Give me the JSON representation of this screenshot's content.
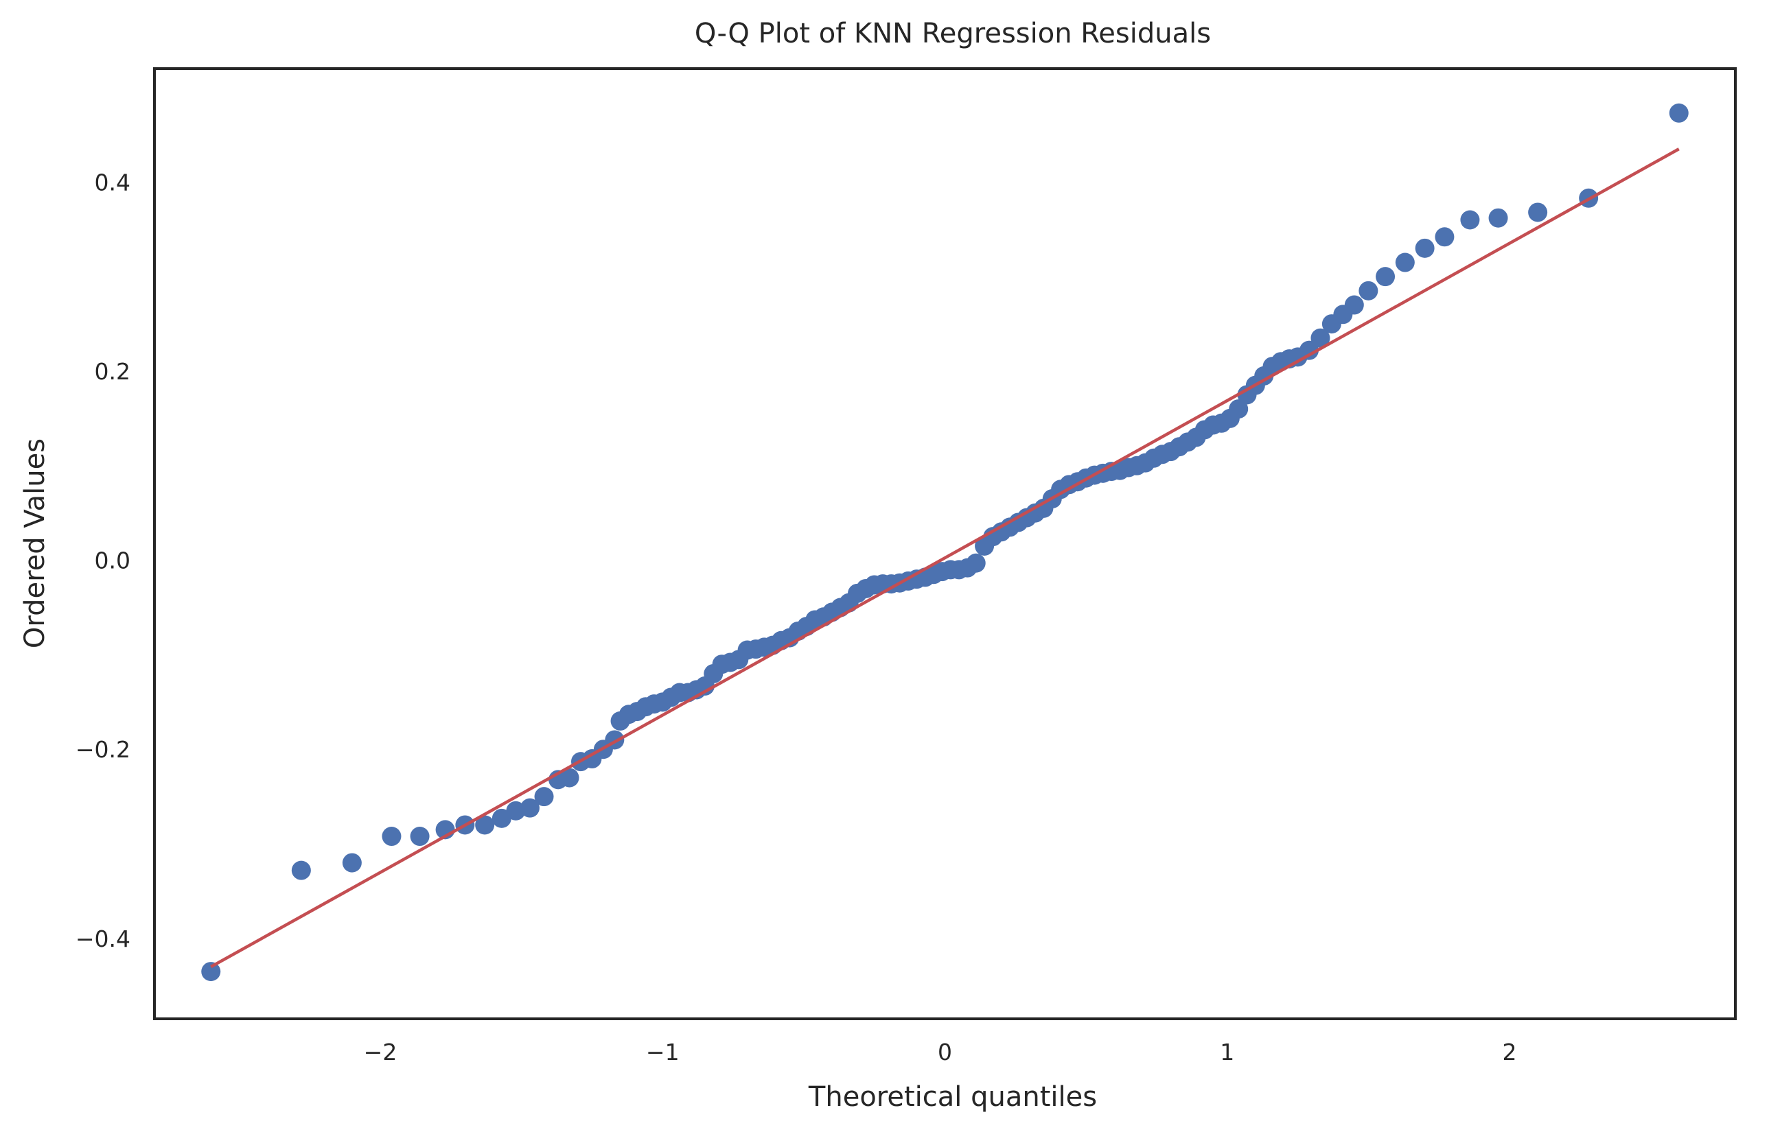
{
  "chart_data": {
    "type": "scatter",
    "title": "Q-Q Plot of KNN Regression Residuals",
    "xlabel": "Theoretical quantiles",
    "ylabel": "Ordered Values",
    "xlim": [
      -2.8,
      2.8
    ],
    "ylim": [
      -0.485,
      0.52
    ],
    "x_ticks": [
      {
        "value": -2,
        "label": "−2"
      },
      {
        "value": -1,
        "label": "−1"
      },
      {
        "value": 0,
        "label": "0"
      },
      {
        "value": 1,
        "label": "1"
      },
      {
        "value": 2,
        "label": "2"
      }
    ],
    "y_ticks": [
      {
        "value": -0.4,
        "label": "−0.4"
      },
      {
        "value": -0.2,
        "label": "−0.2"
      },
      {
        "value": 0,
        "label": "0.0"
      },
      {
        "value": 0.2,
        "label": "0.2"
      },
      {
        "value": 0.4,
        "label": "0.4"
      }
    ],
    "grid": false,
    "points_color": "#4c72b0",
    "fit_line": {
      "color": "#c44e52",
      "x": [
        -2.6,
        2.6
      ],
      "y": [
        -0.43,
        0.435
      ]
    },
    "points": {
      "x": [
        -2.6,
        -2.28,
        -2.1,
        -1.96,
        -1.86,
        -1.77,
        -1.7,
        -1.63,
        -1.57,
        -1.52,
        -1.47,
        -1.42,
        -1.37,
        -1.33,
        -1.29,
        -1.25,
        -1.21,
        -1.17,
        -1.15,
        -1.12,
        -1.09,
        -1.06,
        -1.03,
        -1.0,
        -0.97,
        -0.94,
        -0.91,
        -0.88,
        -0.85,
        -0.82,
        -0.79,
        -0.76,
        -0.73,
        -0.7,
        -0.67,
        -0.64,
        -0.61,
        -0.58,
        -0.55,
        -0.52,
        -0.49,
        -0.46,
        -0.43,
        -0.4,
        -0.37,
        -0.34,
        -0.31,
        -0.28,
        -0.25,
        -0.22,
        -0.19,
        -0.16,
        -0.13,
        -0.1,
        -0.07,
        -0.04,
        -0.01,
        0.02,
        0.05,
        0.08,
        0.11,
        0.14,
        0.17,
        0.2,
        0.23,
        0.26,
        0.29,
        0.32,
        0.35,
        0.38,
        0.41,
        0.44,
        0.47,
        0.5,
        0.53,
        0.56,
        0.59,
        0.62,
        0.65,
        0.68,
        0.71,
        0.74,
        0.77,
        0.8,
        0.83,
        0.86,
        0.89,
        0.92,
        0.95,
        0.98,
        1.01,
        1.04,
        1.07,
        1.1,
        1.13,
        1.16,
        1.19,
        1.22,
        1.25,
        1.29,
        1.33,
        1.37,
        1.41,
        1.45,
        1.5,
        1.56,
        1.63,
        1.7,
        1.77,
        1.86,
        1.96,
        2.1,
        2.28,
        2.6
      ],
      "y": [
        -0.435,
        -0.328,
        -0.32,
        -0.292,
        -0.292,
        -0.285,
        -0.28,
        -0.28,
        -0.273,
        -0.265,
        -0.262,
        -0.25,
        -0.232,
        -0.23,
        -0.213,
        -0.21,
        -0.2,
        -0.19,
        -0.17,
        -0.163,
        -0.16,
        -0.155,
        -0.152,
        -0.15,
        -0.145,
        -0.14,
        -0.14,
        -0.137,
        -0.133,
        -0.12,
        -0.11,
        -0.108,
        -0.105,
        -0.095,
        -0.094,
        -0.092,
        -0.09,
        -0.085,
        -0.082,
        -0.075,
        -0.07,
        -0.063,
        -0.06,
        -0.055,
        -0.05,
        -0.045,
        -0.035,
        -0.03,
        -0.026,
        -0.025,
        -0.025,
        -0.024,
        -0.022,
        -0.02,
        -0.018,
        -0.015,
        -0.012,
        -0.01,
        -0.01,
        -0.008,
        -0.003,
        0.015,
        0.025,
        0.03,
        0.035,
        0.04,
        0.045,
        0.05,
        0.055,
        0.065,
        0.075,
        0.08,
        0.083,
        0.087,
        0.09,
        0.092,
        0.094,
        0.095,
        0.098,
        0.1,
        0.103,
        0.108,
        0.112,
        0.115,
        0.12,
        0.125,
        0.13,
        0.138,
        0.143,
        0.145,
        0.15,
        0.16,
        0.175,
        0.185,
        0.195,
        0.205,
        0.21,
        0.213,
        0.215,
        0.222,
        0.235,
        0.25,
        0.26,
        0.27,
        0.285,
        0.3,
        0.315,
        0.33,
        0.342,
        0.36,
        0.362,
        0.368,
        0.383,
        0.473
      ]
    }
  }
}
